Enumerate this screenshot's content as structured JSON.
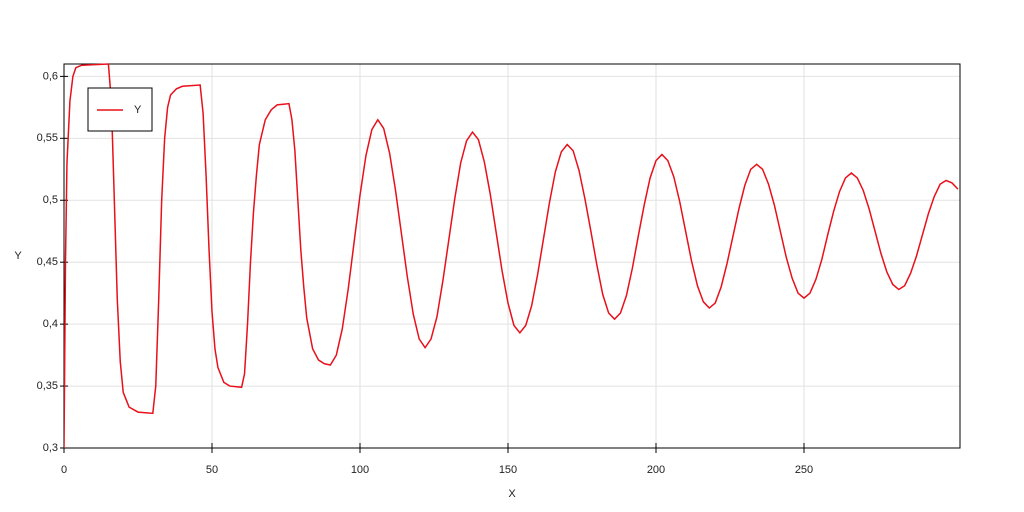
{
  "chart_data": {
    "type": "line",
    "x_label": "X",
    "y_label": "Y",
    "x": [
      0,
      0.5,
      1,
      2,
      3,
      4,
      6,
      15,
      16,
      17,
      18,
      19,
      20,
      22,
      25,
      30,
      31,
      32,
      33,
      34,
      35,
      36,
      38,
      40,
      46,
      47,
      48,
      49,
      50,
      51,
      52,
      54,
      56,
      60,
      61,
      62,
      63,
      64,
      65,
      66,
      68,
      70,
      72,
      76,
      77,
      78,
      79,
      80,
      81,
      82,
      84,
      86,
      88,
      90,
      92,
      94,
      96,
      98,
      100,
      102,
      104,
      106,
      108,
      110,
      112,
      114,
      116,
      118,
      120,
      122,
      124,
      126,
      128,
      130,
      132,
      134,
      136,
      138,
      140,
      142,
      144,
      146,
      148,
      150,
      152,
      154,
      156,
      158,
      160,
      162,
      164,
      166,
      168,
      170,
      172,
      174,
      176,
      178,
      180,
      182,
      184,
      186,
      188,
      190,
      192,
      194,
      196,
      198,
      200,
      202,
      204,
      206,
      208,
      210,
      212,
      214,
      216,
      218,
      220,
      222,
      224,
      226,
      228,
      230,
      232,
      234,
      236,
      238,
      240,
      242,
      244,
      246,
      248,
      250,
      252,
      254,
      256,
      258,
      260,
      262,
      264,
      266,
      268,
      270,
      272,
      274,
      276,
      278,
      280,
      282,
      284,
      286,
      288,
      290,
      292,
      294,
      296,
      298,
      300,
      302
    ],
    "series": [
      {
        "name": "Y",
        "color": "#e8101a",
        "values": [
          0.3,
          0.45,
          0.53,
          0.58,
          0.6,
          0.607,
          0.609,
          0.61,
          0.58,
          0.5,
          0.42,
          0.37,
          0.345,
          0.333,
          0.329,
          0.328,
          0.35,
          0.42,
          0.5,
          0.55,
          0.575,
          0.585,
          0.59,
          0.592,
          0.593,
          0.57,
          0.52,
          0.46,
          0.41,
          0.38,
          0.365,
          0.353,
          0.35,
          0.349,
          0.36,
          0.4,
          0.45,
          0.49,
          0.52,
          0.545,
          0.565,
          0.573,
          0.577,
          0.578,
          0.565,
          0.54,
          0.5,
          0.46,
          0.43,
          0.405,
          0.38,
          0.371,
          0.368,
          0.367,
          0.375,
          0.396,
          0.428,
          0.466,
          0.504,
          0.536,
          0.557,
          0.565,
          0.558,
          0.538,
          0.508,
          0.473,
          0.438,
          0.408,
          0.388,
          0.381,
          0.388,
          0.406,
          0.435,
          0.468,
          0.501,
          0.53,
          0.548,
          0.555,
          0.549,
          0.531,
          0.505,
          0.474,
          0.443,
          0.417,
          0.399,
          0.393,
          0.399,
          0.415,
          0.44,
          0.469,
          0.498,
          0.523,
          0.539,
          0.545,
          0.54,
          0.524,
          0.501,
          0.475,
          0.448,
          0.424,
          0.409,
          0.404,
          0.409,
          0.423,
          0.445,
          0.471,
          0.496,
          0.518,
          0.532,
          0.537,
          0.532,
          0.519,
          0.499,
          0.475,
          0.451,
          0.431,
          0.418,
          0.413,
          0.417,
          0.43,
          0.449,
          0.471,
          0.493,
          0.512,
          0.525,
          0.529,
          0.525,
          0.513,
          0.496,
          0.475,
          0.454,
          0.437,
          0.425,
          0.421,
          0.425,
          0.436,
          0.452,
          0.472,
          0.491,
          0.507,
          0.518,
          0.522,
          0.518,
          0.508,
          0.493,
          0.475,
          0.457,
          0.442,
          0.432,
          0.428,
          0.431,
          0.441,
          0.455,
          0.472,
          0.489,
          0.503,
          0.513,
          0.516,
          0.514,
          0.509
        ]
      }
    ],
    "xlim": [
      0,
      302.7
    ],
    "ylim": [
      0.3,
      0.61
    ],
    "xticks": [
      0,
      50,
      100,
      150,
      200,
      250
    ],
    "yticks": [
      {
        "value": 0.3,
        "label": "0,3"
      },
      {
        "value": 0.35,
        "label": "0,35"
      },
      {
        "value": 0.4,
        "label": "0,4"
      },
      {
        "value": 0.45,
        "label": "0,45"
      },
      {
        "value": 0.5,
        "label": "0,5"
      },
      {
        "value": 0.55,
        "label": "0,55"
      },
      {
        "value": 0.6,
        "label": "0,6"
      }
    ],
    "grid": true,
    "legend": "upper left"
  }
}
